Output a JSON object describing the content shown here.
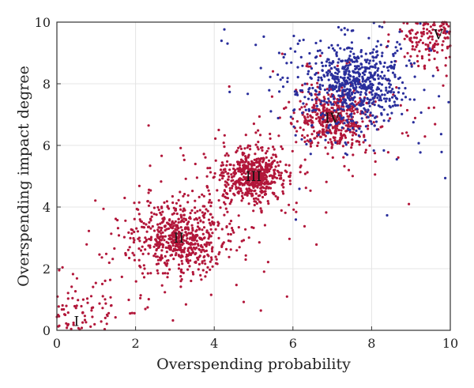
{
  "chart_data": {
    "type": "scatter",
    "title": "",
    "xlabel": "Overspending probability",
    "ylabel": "Overspending impact degree",
    "xlim": [
      0,
      10
    ],
    "ylim": [
      0,
      10
    ],
    "xticks": [
      "0",
      "2",
      "4",
      "6",
      "8",
      "10"
    ],
    "yticks": [
      "0",
      "2",
      "4",
      "6",
      "8",
      "10"
    ],
    "grid": true,
    "colors": {
      "red": "#b2173a",
      "blue": "#2a2f9c"
    },
    "clusters": [
      {
        "label": "I",
        "center": [
          0.5,
          0.3
        ],
        "color": "red",
        "count": 130,
        "sx": 0.55,
        "sy": 0.55
      },
      {
        "label": "II",
        "center": [
          3.1,
          3.0
        ],
        "color": "red",
        "count": 700,
        "sx": 0.55,
        "sy": 0.55
      },
      {
        "label": "III",
        "center": [
          5.0,
          5.0
        ],
        "color": "red",
        "count": 600,
        "sx": 0.35,
        "sy": 0.35
      },
      {
        "label": "IV",
        "center": [
          7.0,
          6.9
        ],
        "color": "red",
        "count": 500,
        "sx": 0.45,
        "sy": 0.45
      },
      {
        "label": "V",
        "center": [
          9.7,
          9.6
        ],
        "color": "red",
        "count": 260,
        "sx": 0.5,
        "sy": 0.5
      },
      {
        "label": "",
        "center": [
          7.5,
          8.0
        ],
        "color": "blue",
        "count": 750,
        "sx": 0.6,
        "sy": 0.6
      }
    ]
  }
}
